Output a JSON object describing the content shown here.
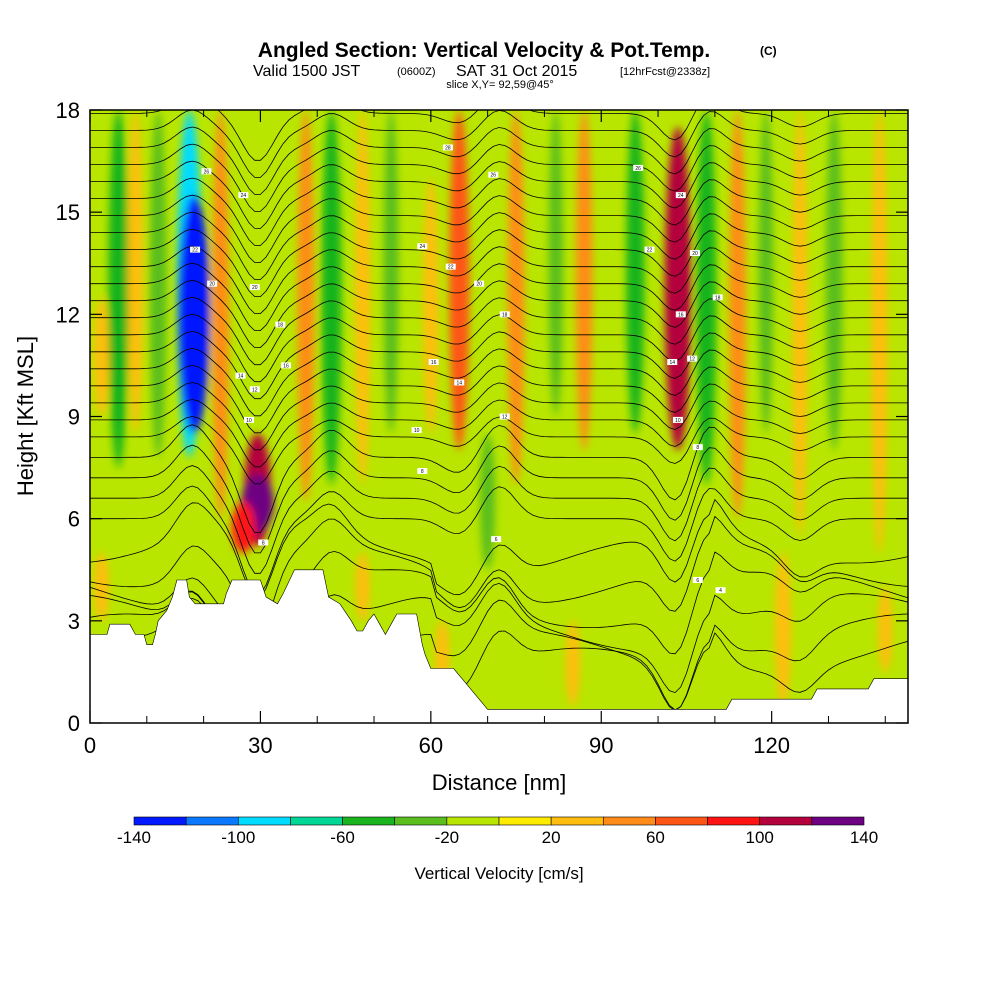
{
  "title": {
    "main": "Angled Section: Vertical Velocity & Pot.Temp.",
    "main_tag": "(C)",
    "valid_prefix": "Valid 1500 JST",
    "valid_zulu": "(0600Z)",
    "valid_date": "SAT 31 Oct 2015",
    "valid_fcst": "[12hrFcst@2338z]",
    "slice": "slice X,Y= 92,59@45°"
  },
  "chart_data": {
    "type": "heatmap",
    "xlabel": "Distance [nm]",
    "ylabel": "Height [Kft MSL]",
    "xlim": [
      0,
      144
    ],
    "ylim": [
      0,
      18
    ],
    "xticks": [
      "0",
      "30",
      "60",
      "90",
      "120"
    ],
    "xtick_values": [
      0,
      30,
      60,
      90,
      120
    ],
    "yticks": [
      "0",
      "3",
      "6",
      "9",
      "12",
      "15",
      "18"
    ],
    "ytick_values": [
      0,
      3,
      6,
      9,
      12,
      15,
      18
    ],
    "background_color": "#b8e600",
    "colorbar": {
      "title": "Vertical Velocity [cm/s]",
      "labels": [
        "-140",
        "-100",
        "-60",
        "-20",
        "20",
        "60",
        "100",
        "140"
      ],
      "colors": [
        "#0019ff",
        "#0a78ff",
        "#00dcff",
        "#00d796",
        "#19b41e",
        "#5abe1e",
        "#b8e600",
        "#ffeb00",
        "#ffbe0f",
        "#ff8c19",
        "#ff5514",
        "#ff1414",
        "#b4003c",
        "#6e0082"
      ]
    },
    "velocity_features": [
      {
        "x": 2,
        "top": 12.5,
        "bottom": 9.0,
        "value": 30
      },
      {
        "x": 5,
        "top": 18,
        "bottom": 7.5,
        "value": -60
      },
      {
        "x": 8,
        "top": 18,
        "bottom": 8.5,
        "value": 30
      },
      {
        "x": 12,
        "top": 18,
        "bottom": 7.8,
        "value": -40
      },
      {
        "x": 17.5,
        "top": 18,
        "bottom": 7.8,
        "value": -90
      },
      {
        "x": 18.3,
        "top": 15.5,
        "bottom": 8.5,
        "value": -130
      },
      {
        "x": 23,
        "top": 18,
        "bottom": 6.0,
        "value": 40
      },
      {
        "x": 29.5,
        "top": 8.5,
        "bottom": 5.2,
        "value": 100
      },
      {
        "x": 29.5,
        "top": 7.3,
        "bottom": 5.6,
        "value": 135
      },
      {
        "x": 27,
        "top": 6.5,
        "bottom": 5.0,
        "value": 80
      },
      {
        "x": 38,
        "top": 18,
        "bottom": 6.5,
        "value": 40
      },
      {
        "x": 42.5,
        "top": 18,
        "bottom": 7.0,
        "value": -60
      },
      {
        "x": 48,
        "top": 18,
        "bottom": 7.0,
        "value": 30
      },
      {
        "x": 53,
        "top": 18,
        "bottom": 8.5,
        "value": -30
      },
      {
        "x": 60,
        "top": 16,
        "bottom": 8.5,
        "value": 30
      },
      {
        "x": 65,
        "top": 18,
        "bottom": 8.0,
        "value": 60
      },
      {
        "x": 70,
        "top": 8.5,
        "bottom": 4.5,
        "value": -30
      },
      {
        "x": 75,
        "top": 18,
        "bottom": 7.0,
        "value": 40
      },
      {
        "x": 82,
        "top": 18,
        "bottom": 9.0,
        "value": -25
      },
      {
        "x": 87,
        "top": 18,
        "bottom": 8.0,
        "value": 40
      },
      {
        "x": 96,
        "top": 18,
        "bottom": 8.5,
        "value": -50
      },
      {
        "x": 103.5,
        "top": 17.5,
        "bottom": 8.0,
        "value": 100
      },
      {
        "x": 108.5,
        "top": 18,
        "bottom": 7.0,
        "value": -60
      },
      {
        "x": 114,
        "top": 18,
        "bottom": 6.0,
        "value": 40
      },
      {
        "x": 119,
        "top": 18,
        "bottom": 8.5,
        "value": -25
      },
      {
        "x": 125,
        "top": 18,
        "bottom": 5.5,
        "value": 30
      },
      {
        "x": 131,
        "top": 18,
        "bottom": 8.0,
        "value": -40
      },
      {
        "x": 139,
        "top": 18,
        "bottom": 5.0,
        "value": 35
      },
      {
        "x": 2,
        "top": 5.0,
        "bottom": 3.0,
        "value": 30
      },
      {
        "x": 48,
        "top": 5.0,
        "bottom": 3.0,
        "value": 20
      },
      {
        "x": 62,
        "top": 3.0,
        "bottom": 1.0,
        "value": 25
      },
      {
        "x": 85,
        "top": 3.0,
        "bottom": 0.5,
        "value": 25
      },
      {
        "x": 122,
        "top": 5.0,
        "bottom": 0.5,
        "value": 35
      },
      {
        "x": 140,
        "top": 4.0,
        "bottom": 1.5,
        "value": 20
      }
    ],
    "terrain_profile": [
      [
        0,
        2.6
      ],
      [
        3,
        2.6
      ],
      [
        3.5,
        2.9
      ],
      [
        7,
        2.9
      ],
      [
        8,
        2.6
      ],
      [
        9.5,
        2.6
      ],
      [
        10,
        2.3
      ],
      [
        11,
        2.3
      ],
      [
        11.5,
        2.6
      ],
      [
        12,
        3.0
      ],
      [
        13.5,
        3.3
      ],
      [
        14.5,
        3.7
      ],
      [
        15.3,
        4.2
      ],
      [
        17,
        4.2
      ],
      [
        17.5,
        3.7
      ],
      [
        18.5,
        3.5
      ],
      [
        18.8,
        3.5
      ],
      [
        19,
        3.5
      ],
      [
        23.5,
        3.5
      ],
      [
        24,
        3.8
      ],
      [
        25,
        4.2
      ],
      [
        30,
        4.2
      ],
      [
        31,
        3.7
      ],
      [
        33,
        3.5
      ],
      [
        34,
        3.8
      ],
      [
        36,
        4.5
      ],
      [
        41,
        4.5
      ],
      [
        42,
        3.7
      ],
      [
        44,
        3.5
      ],
      [
        46,
        3.0
      ],
      [
        47,
        2.7
      ],
      [
        48,
        2.7
      ],
      [
        49,
        3.0
      ],
      [
        50,
        3.2
      ],
      [
        51,
        2.9
      ],
      [
        52,
        2.6
      ],
      [
        53,
        2.9
      ],
      [
        54,
        3.2
      ],
      [
        57.5,
        3.2
      ],
      [
        58.5,
        2.3
      ],
      [
        59,
        2.0
      ],
      [
        60,
        1.6
      ],
      [
        64,
        1.6
      ],
      [
        65,
        1.4
      ],
      [
        66,
        1.2
      ],
      [
        67,
        1.0
      ],
      [
        68,
        0.8
      ],
      [
        69,
        0.6
      ],
      [
        70,
        0.4
      ],
      [
        112,
        0.4
      ],
      [
        113,
        0.7
      ],
      [
        127,
        0.7
      ],
      [
        128,
        1.0
      ],
      [
        137,
        1.0
      ],
      [
        138,
        1.3
      ],
      [
        144,
        1.3
      ]
    ],
    "isentrope_heights": [
      2.1,
      2.6,
      3.2,
      3.9,
      4.6,
      5.3,
      6.0,
      6.6,
      7.2,
      7.8,
      8.4,
      8.9,
      9.4,
      9.9,
      10.4,
      10.9,
      11.4,
      11.9,
      12.4,
      12.9,
      13.4,
      13.9,
      14.4,
      14.9,
      15.4,
      15.9,
      16.4,
      16.9,
      17.4,
      17.9
    ],
    "isentrope_color": "#000000",
    "contour_labels": [
      {
        "x": 20.5,
        "y": 16.2,
        "text": "26"
      },
      {
        "x": 27,
        "y": 15.5,
        "text": "24"
      },
      {
        "x": 18.5,
        "y": 13.9,
        "text": "22"
      },
      {
        "x": 21.5,
        "y": 12.9,
        "text": "20"
      },
      {
        "x": 29,
        "y": 12.8,
        "text": "20"
      },
      {
        "x": 33.5,
        "y": 11.7,
        "text": "18"
      },
      {
        "x": 34.5,
        "y": 10.5,
        "text": "16"
      },
      {
        "x": 26.5,
        "y": 10.2,
        "text": "14"
      },
      {
        "x": 29,
        "y": 9.8,
        "text": "12"
      },
      {
        "x": 28,
        "y": 8.9,
        "text": "10"
      },
      {
        "x": 30.5,
        "y": 5.3,
        "text": "8"
      },
      {
        "x": 63,
        "y": 16.9,
        "text": "28"
      },
      {
        "x": 71,
        "y": 16.1,
        "text": "26"
      },
      {
        "x": 58.5,
        "y": 14.0,
        "text": "24"
      },
      {
        "x": 63.5,
        "y": 13.4,
        "text": "22"
      },
      {
        "x": 68.5,
        "y": 12.9,
        "text": "20"
      },
      {
        "x": 73,
        "y": 12.0,
        "text": "18"
      },
      {
        "x": 60.5,
        "y": 10.6,
        "text": "16"
      },
      {
        "x": 65,
        "y": 10.0,
        "text": "14"
      },
      {
        "x": 73,
        "y": 9.0,
        "text": "12"
      },
      {
        "x": 57.5,
        "y": 8.6,
        "text": "10"
      },
      {
        "x": 58.5,
        "y": 7.4,
        "text": "8"
      },
      {
        "x": 71.5,
        "y": 5.4,
        "text": "6"
      },
      {
        "x": 96.5,
        "y": 16.3,
        "text": "26"
      },
      {
        "x": 104,
        "y": 15.5,
        "text": "24"
      },
      {
        "x": 98.5,
        "y": 13.9,
        "text": "22"
      },
      {
        "x": 106.5,
        "y": 13.8,
        "text": "20"
      },
      {
        "x": 110.5,
        "y": 12.5,
        "text": "18"
      },
      {
        "x": 104,
        "y": 12.0,
        "text": "16"
      },
      {
        "x": 102.5,
        "y": 10.6,
        "text": "14"
      },
      {
        "x": 106,
        "y": 10.7,
        "text": "12"
      },
      {
        "x": 103.5,
        "y": 8.9,
        "text": "10"
      },
      {
        "x": 107,
        "y": 8.1,
        "text": "8"
      },
      {
        "x": 107,
        "y": 4.2,
        "text": "6"
      },
      {
        "x": 111,
        "y": 3.9,
        "text": "4"
      }
    ]
  }
}
